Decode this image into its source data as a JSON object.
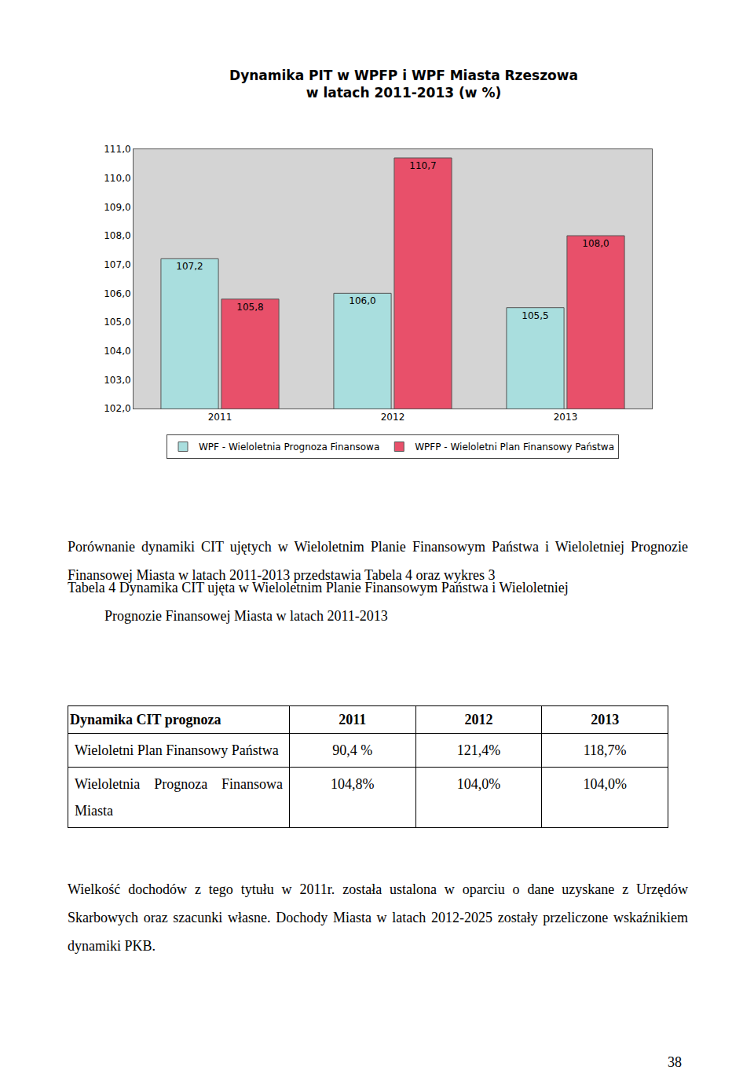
{
  "chart_data": {
    "type": "bar",
    "title": [
      "Dynamika PIT w WPFP i WPF Miasta Rzeszowa",
      "w latach 2011-2013 (w %)"
    ],
    "categories": [
      "2011",
      "2012",
      "2013"
    ],
    "series": [
      {
        "name": "WPF - Wieloletnia Prognoza Finansowa",
        "color": "#a9dede",
        "values": [
          107.2,
          106.0,
          105.5
        ],
        "value_labels": [
          "107,2",
          "106,0",
          "105,5"
        ]
      },
      {
        "name": "WPFP - Wieloletni Plan Finansowy Państwa",
        "color": "#e8506a",
        "values": [
          105.8,
          110.7,
          108.0
        ],
        "value_labels": [
          "105,8",
          "110,7",
          "108,0"
        ]
      }
    ],
    "ylim": [
      102,
      111
    ],
    "yticks": [
      {
        "value": 102,
        "label": "102,0"
      },
      {
        "value": 103,
        "label": "103,0"
      },
      {
        "value": 104,
        "label": "104,0"
      },
      {
        "value": 105,
        "label": "105,0"
      },
      {
        "value": 106,
        "label": "106,0"
      },
      {
        "value": 107,
        "label": "107,0"
      },
      {
        "value": 108,
        "label": "108,0"
      },
      {
        "value": 109,
        "label": "109,0"
      },
      {
        "value": 110,
        "label": "110,0"
      },
      {
        "value": 111,
        "label": "111,0"
      }
    ],
    "grid": false,
    "legend": "bottom",
    "data_labels": true
  },
  "paragraphs": [
    "Porównanie dynamiki CIT ujętych w Wieloletnim Planie Finansowym Państwa i Wieloletniej Prognozie Finansowej Miasta w latach 2011-2013 przedstawia Tabela 4 oraz wykres 3",
    "Wielkość dochodów z tego tytułu w 2011r. została ustalona w oparciu o dane uzyskane z Urzędów Skarbowych oraz szacunki własne. Dochody Miasta  w latach 2012-2025 zostały przeliczone wskaźnikiem dynamiki PKB."
  ],
  "table": {
    "caption": [
      "Tabela 4 Dynamika CIT ujęta w Wieloletnim Planie Finansowym Państwa i Wieloletniej",
      "Prognozie Finansowej Miasta w latach 2011-2013"
    ],
    "header": [
      "Dynamika CIT prognoza",
      "2011",
      "2012",
      "2013"
    ],
    "rows": [
      [
        "Wieloletni Plan Finansowy Państwa",
        "90,4 %",
        "121,4%",
        "118,7%"
      ],
      [
        "Wieloletnia Prognoza Finansowa Miasta",
        "104,8%",
        "104,0%",
        "104,0%"
      ]
    ]
  },
  "page_number": "38"
}
